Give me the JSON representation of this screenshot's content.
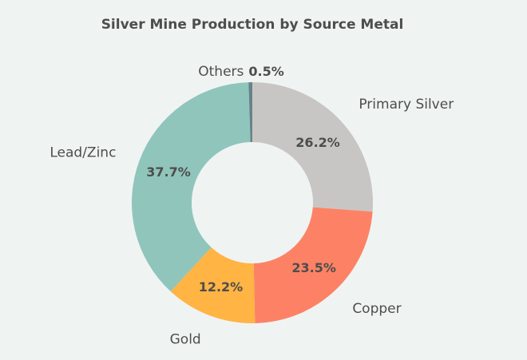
{
  "chart_data": {
    "type": "pie",
    "title": "Silver Mine Production by Source Metal",
    "donut": true,
    "start_angle_deg": 0,
    "direction": "clockwise",
    "slices": [
      {
        "label": "Primary Silver",
        "value": 26.2,
        "value_label": "26.2%",
        "color": "#c8c6c4"
      },
      {
        "label": "Copper",
        "value": 23.5,
        "value_label": "23.5%",
        "color": "#fd8265"
      },
      {
        "label": "Gold",
        "value": 12.2,
        "value_label": "12.2%",
        "color": "#ffb444"
      },
      {
        "label": "Lead/Zinc",
        "value": 37.7,
        "value_label": "37.7%",
        "color": "#90c5bc"
      },
      {
        "label": "Others",
        "value": 0.5,
        "value_label": "0.5%",
        "color": "#668388"
      }
    ],
    "background": "#eff4f3"
  }
}
